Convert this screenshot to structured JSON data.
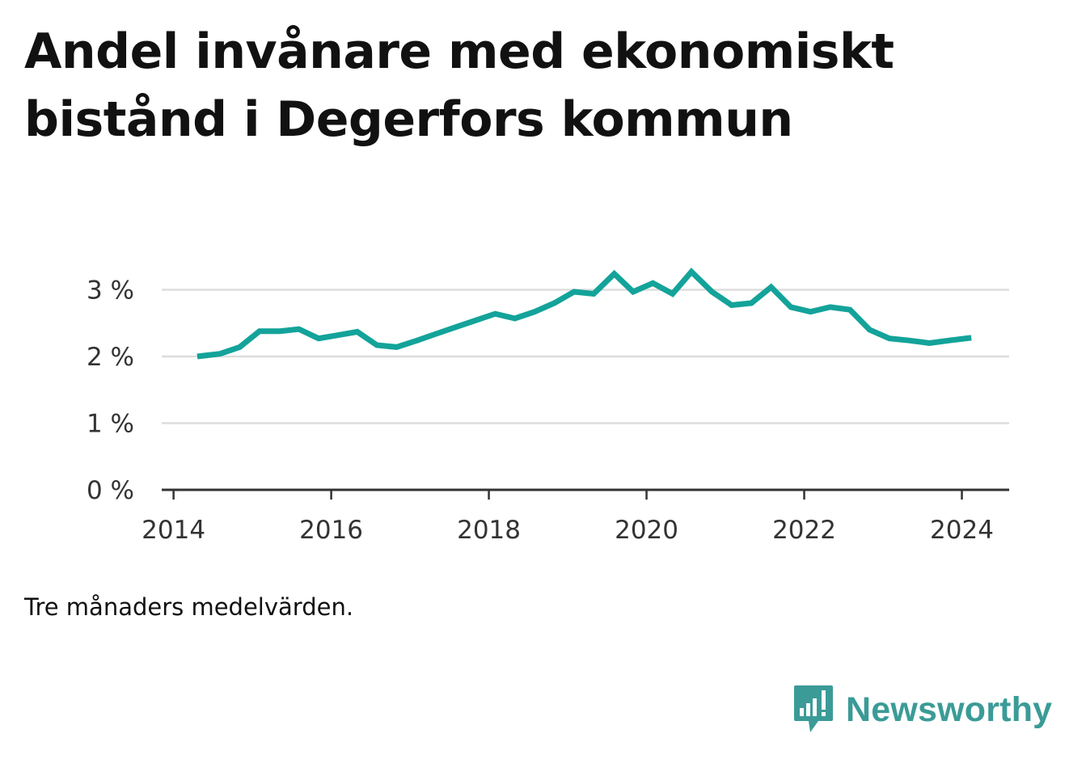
{
  "title": "Andel invånare med ekonomiskt bistånd i Degerfors kommun",
  "note": "Tre månaders medelvärden.",
  "brand": {
    "name": "Newsworthy",
    "logo_icon": "chart-bubble-icon"
  },
  "colors": {
    "line": "#13a39a",
    "grid": "#dddddd",
    "axis": "#333333",
    "brand": "#3b9b97"
  },
  "chart_data": {
    "type": "line",
    "title": "Andel invånare med ekonomiskt bistånd i Degerfors kommun",
    "xlabel": "",
    "ylabel": "",
    "x_range": [
      2013.85,
      2024.6
    ],
    "ylim": [
      0,
      3.2
    ],
    "x_ticks": [
      2014,
      2016,
      2018,
      2020,
      2022,
      2024
    ],
    "x_tick_labels": [
      "2014",
      "2016",
      "2018",
      "2020",
      "2022",
      "2024"
    ],
    "y_ticks": [
      0,
      1,
      2,
      3
    ],
    "y_tick_labels": [
      "0 %",
      "1 %",
      "2 %",
      "3 %"
    ],
    "grid": true,
    "series": [
      {
        "points": [
          [
            2014.3,
            2.0
          ],
          [
            2014.59,
            2.04
          ],
          [
            2014.84,
            2.14
          ],
          [
            2015.09,
            2.38
          ],
          [
            2015.35,
            2.38
          ],
          [
            2015.59,
            2.41
          ],
          [
            2015.84,
            2.27
          ],
          [
            2016.09,
            2.32
          ],
          [
            2016.33,
            2.37
          ],
          [
            2016.58,
            2.17
          ],
          [
            2016.83,
            2.14
          ],
          [
            2017.09,
            2.24
          ],
          [
            2017.33,
            2.34
          ],
          [
            2017.58,
            2.44
          ],
          [
            2017.83,
            2.54
          ],
          [
            2018.08,
            2.64
          ],
          [
            2018.33,
            2.57
          ],
          [
            2018.58,
            2.67
          ],
          [
            2018.83,
            2.8
          ],
          [
            2019.08,
            2.97
          ],
          [
            2019.33,
            2.94
          ],
          [
            2019.59,
            3.24
          ],
          [
            2019.83,
            2.97
          ],
          [
            2020.08,
            3.1
          ],
          [
            2020.33,
            2.94
          ],
          [
            2020.57,
            3.27
          ],
          [
            2020.83,
            2.97
          ],
          [
            2021.08,
            2.77
          ],
          [
            2021.33,
            2.8
          ],
          [
            2021.58,
            3.04
          ],
          [
            2021.83,
            2.74
          ],
          [
            2022.08,
            2.67
          ],
          [
            2022.33,
            2.74
          ],
          [
            2022.58,
            2.7
          ],
          [
            2022.83,
            2.4
          ],
          [
            2023.08,
            2.27
          ],
          [
            2023.33,
            2.24
          ],
          [
            2023.59,
            2.2
          ],
          [
            2023.84,
            2.24
          ],
          [
            2024.12,
            2.28
          ]
        ]
      }
    ]
  }
}
